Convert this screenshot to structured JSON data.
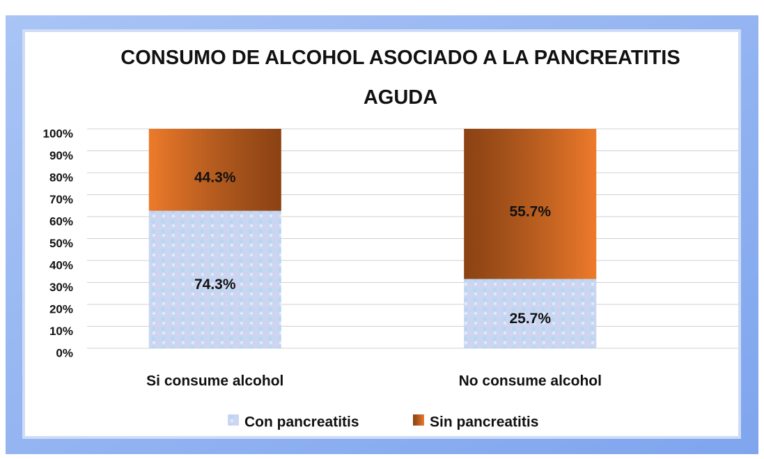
{
  "chart_data": {
    "type": "stacked_bar",
    "stacking": "percent",
    "title": "CONSUMO DE ALCOHOL ASOCIADO A LA PANCREATITIS AGUDA",
    "categories": [
      "Si consume alcohol",
      "No consume alcohol"
    ],
    "series": [
      {
        "name": "Con pancreatitis",
        "color": "#c8d7f1",
        "values": [
          74.3,
          25.7
        ],
        "value_labels": [
          "74.3%",
          "25.7%"
        ]
      },
      {
        "name": "Sin pancreatitis",
        "color": "#ee7a2a",
        "values": [
          44.3,
          55.7
        ],
        "value_labels": [
          "44.3%",
          "55.7%"
        ]
      }
    ],
    "ylim": [
      0,
      100
    ],
    "yticks": [
      {
        "value": 0,
        "label": "0%"
      },
      {
        "value": 10,
        "label": "10%"
      },
      {
        "value": 20,
        "label": "20%"
      },
      {
        "value": 30,
        "label": "30%"
      },
      {
        "value": 40,
        "label": "40%"
      },
      {
        "value": 50,
        "label": "50%"
      },
      {
        "value": 60,
        "label": "60%"
      },
      {
        "value": 70,
        "label": "70%"
      },
      {
        "value": 80,
        "label": "80%"
      },
      {
        "value": 90,
        "label": "90%"
      },
      {
        "value": 100,
        "label": "100%"
      }
    ],
    "grid": true,
    "legend": "bottom"
  }
}
